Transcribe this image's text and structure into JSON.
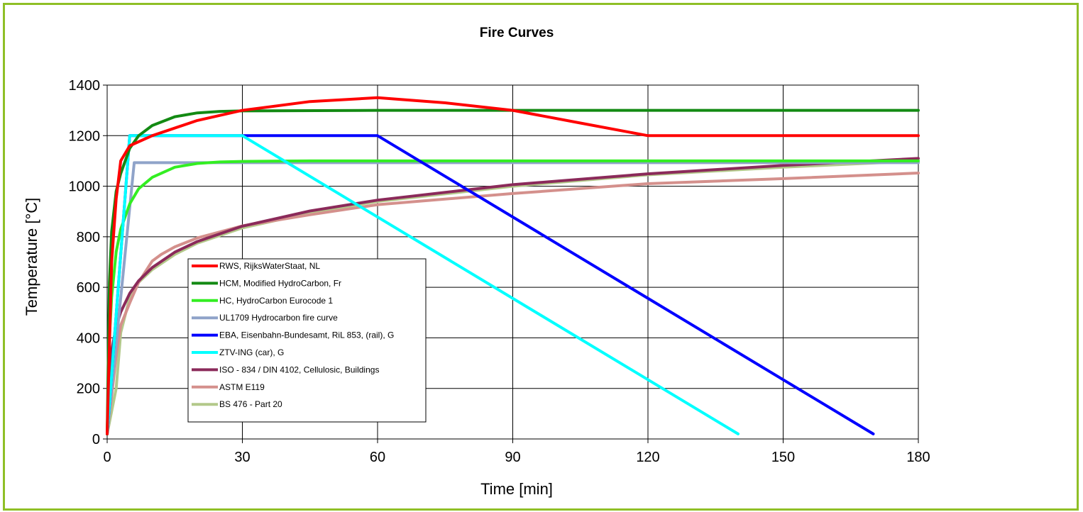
{
  "chart_data": {
    "type": "line",
    "title": "Fire Curves",
    "xlabel": "Time [min]",
    "ylabel": "Temperature [°C]",
    "xlim": [
      0,
      180
    ],
    "ylim": [
      0,
      1400
    ],
    "xticks": [
      0,
      30,
      60,
      90,
      120,
      150,
      180
    ],
    "yticks": [
      0,
      200,
      400,
      600,
      800,
      1000,
      1200,
      1400
    ],
    "grid": true,
    "legend_position": "lower-left inside plot",
    "series": [
      {
        "name": "RWS, RijksWaterStaat, NL",
        "color": "#ff0000",
        "x": [
          0,
          1,
          2,
          3,
          5,
          10,
          20,
          30,
          45,
          60,
          75,
          90,
          105,
          120,
          180
        ],
        "y": [
          20,
          700,
          950,
          1100,
          1160,
          1200,
          1260,
          1300,
          1335,
          1350,
          1330,
          1300,
          1250,
          1200,
          1200
        ]
      },
      {
        "name": "HCM, Modified HydroCarbon, Fr",
        "color": "#138a13",
        "x": [
          0,
          0.5,
          1,
          2,
          3,
          5,
          7,
          10,
          15,
          20,
          25,
          30,
          60,
          90,
          120,
          180
        ],
        "y": [
          20,
          620,
          820,
          980,
          1050,
          1150,
          1200,
          1240,
          1275,
          1290,
          1296,
          1298,
          1300,
          1300,
          1300,
          1300
        ]
      },
      {
        "name": "HC, HydroCarbon Eurocode 1",
        "color": "#33ee22",
        "x": [
          0,
          0.5,
          1,
          2,
          3,
          5,
          7,
          10,
          15,
          20,
          25,
          30,
          45,
          60,
          90,
          120,
          180
        ],
        "y": [
          20,
          400,
          560,
          740,
          830,
          930,
          990,
          1035,
          1075,
          1090,
          1096,
          1098,
          1100,
          1100,
          1100,
          1100,
          1100
        ]
      },
      {
        "name": "UL1709 Hydrocarbon fire curve",
        "color": "#8fa3c9",
        "x": [
          0,
          6,
          180
        ],
        "y": [
          20,
          1093,
          1093
        ]
      },
      {
        "name": "EBA, Eisenbahn-Bundesamt, RiL 853, (rail), G",
        "color": "#0000ff",
        "x": [
          0,
          5,
          60,
          170
        ],
        "y": [
          20,
          1200,
          1200,
          20
        ]
      },
      {
        "name": "ZTV-ING (car), G",
        "color": "#00ffff",
        "x": [
          0,
          5,
          30,
          140
        ],
        "y": [
          20,
          1200,
          1200,
          20
        ]
      },
      {
        "name": "ISO - 834 / DIN 4102, Cellulosic, Buildings",
        "color": "#8b2a5a",
        "x": [
          0,
          1,
          2,
          3,
          5,
          7,
          10,
          15,
          20,
          30,
          45,
          60,
          90,
          120,
          150,
          180
        ],
        "y": [
          20,
          349,
          445,
          502,
          576,
          626,
          678,
          739,
          781,
          842,
          902,
          945,
          1006,
          1049,
          1082,
          1110
        ]
      },
      {
        "name": "ASTM E119",
        "color": "#d4908c",
        "x": [
          0,
          1,
          2,
          3,
          5,
          7,
          10,
          12,
          15,
          20,
          30,
          45,
          60,
          90,
          120,
          150,
          180
        ],
        "y": [
          20,
          170,
          330,
          450,
          538,
          620,
          704,
          730,
          760,
          795,
          843,
          887,
          927,
          971,
          1010,
          1030,
          1052
        ]
      },
      {
        "name": "BS 476 - Part 20",
        "color": "#b3c98a",
        "x": [
          0,
          2,
          3,
          5,
          7,
          10,
          15,
          20,
          30,
          45,
          60,
          90,
          120,
          150,
          180
        ],
        "y": [
          20,
          200,
          420,
          560,
          620,
          670,
          730,
          775,
          835,
          895,
          940,
          1000,
          1045,
          1075,
          1100
        ]
      }
    ]
  }
}
